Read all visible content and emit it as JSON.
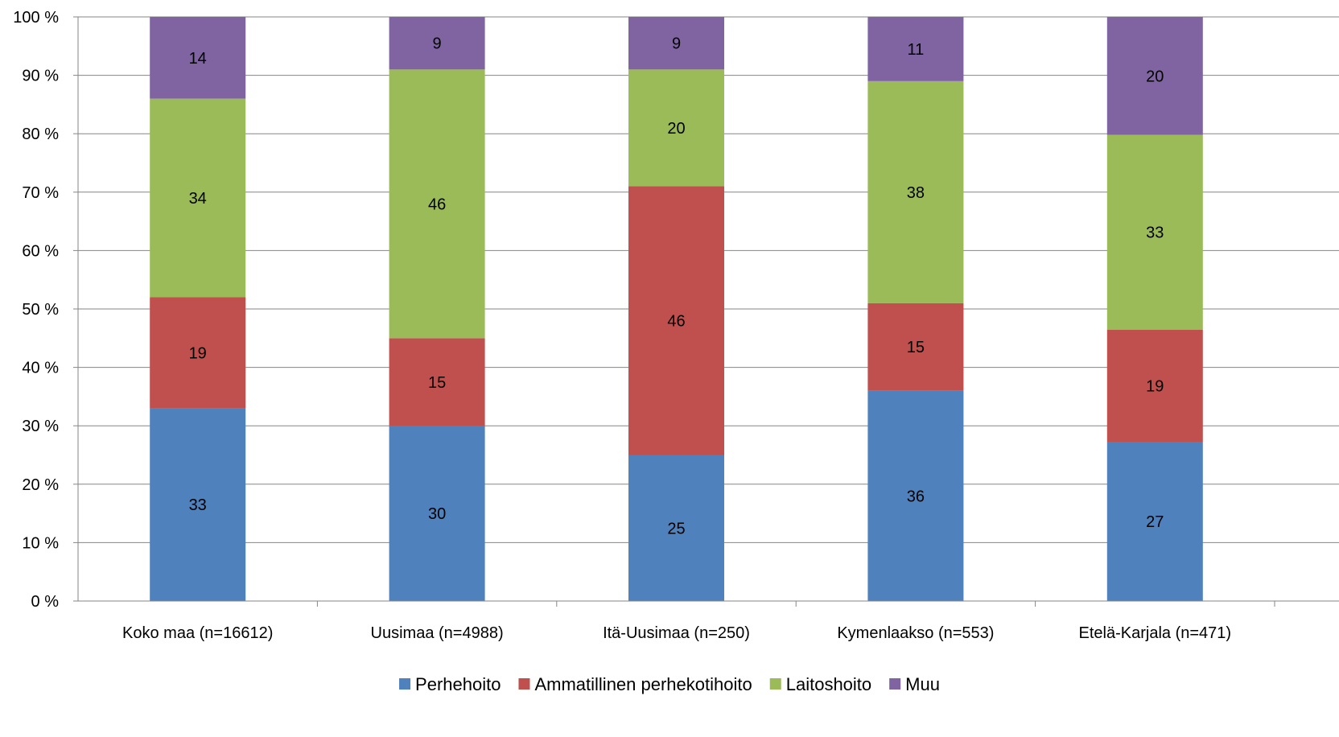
{
  "chart_data": {
    "type": "bar",
    "stacked": true,
    "percent": true,
    "categories": [
      "Koko maa (n=16612)",
      "Uusimaa (n=4988)",
      "Itä-Uusimaa (n=250)",
      "Kymenlaakso (n=553)",
      "Etelä-Karjala (n=471)"
    ],
    "series": [
      {
        "name": "Perhehoito",
        "color": "#4F81BD",
        "values": [
          33,
          30,
          25,
          36,
          27
        ]
      },
      {
        "name": "Ammatillinen perhekotihoito",
        "color": "#C0504D",
        "values": [
          19,
          15,
          46,
          15,
          19
        ]
      },
      {
        "name": "Laitoshoito",
        "color": "#9BBB59",
        "values": [
          34,
          46,
          20,
          38,
          33
        ]
      },
      {
        "name": "Muu",
        "color": "#8064A2",
        "values": [
          14,
          9,
          9,
          11,
          20
        ]
      }
    ],
    "y_ticks": [
      "0 %",
      "10 %",
      "20 %",
      "30 %",
      "40 %",
      "50 %",
      "60 %",
      "70 %",
      "80 %",
      "90 %",
      "100 %"
    ],
    "ylim": [
      0,
      100
    ],
    "grid": true,
    "legend_position": "bottom",
    "title": "",
    "xlabel": "",
    "ylabel": ""
  }
}
